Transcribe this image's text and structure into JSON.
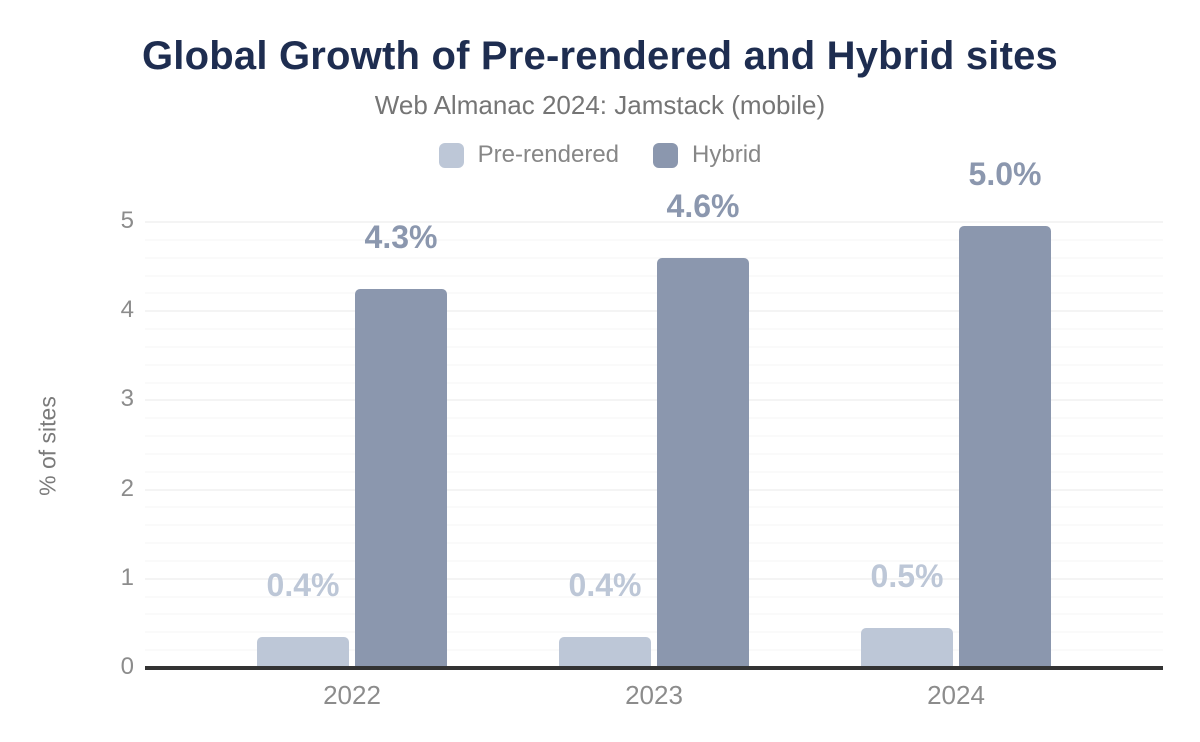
{
  "colors": {
    "title": "#1e2d50",
    "subtitle": "#757575",
    "pre_rendered": "#bdc7d7",
    "hybrid": "#8b97ae"
  },
  "chart_data": {
    "type": "bar",
    "title": "Global Growth of Pre-rendered and Hybrid sites",
    "subtitle": "Web Almanac 2024: Jamstack (mobile)",
    "categories": [
      "2022",
      "2023",
      "2024"
    ],
    "series": [
      {
        "name": "Pre-rendered",
        "color": "#bdc7d7",
        "values": [
          0.35,
          0.35,
          0.45
        ],
        "labels": [
          "0.4%",
          "0.4%",
          "0.5%"
        ]
      },
      {
        "name": "Hybrid",
        "color": "#8b97ae",
        "values": [
          4.25,
          4.6,
          4.95
        ],
        "labels": [
          "4.3%",
          "4.6%",
          "5.0%"
        ]
      }
    ],
    "xlabel": "",
    "ylabel": "% of sites",
    "ylim": [
      0,
      5
    ],
    "yticks": [
      0,
      1,
      2,
      3,
      4,
      5
    ],
    "minor_grid_step": 0.2,
    "grid": true,
    "legend_position": "top"
  }
}
